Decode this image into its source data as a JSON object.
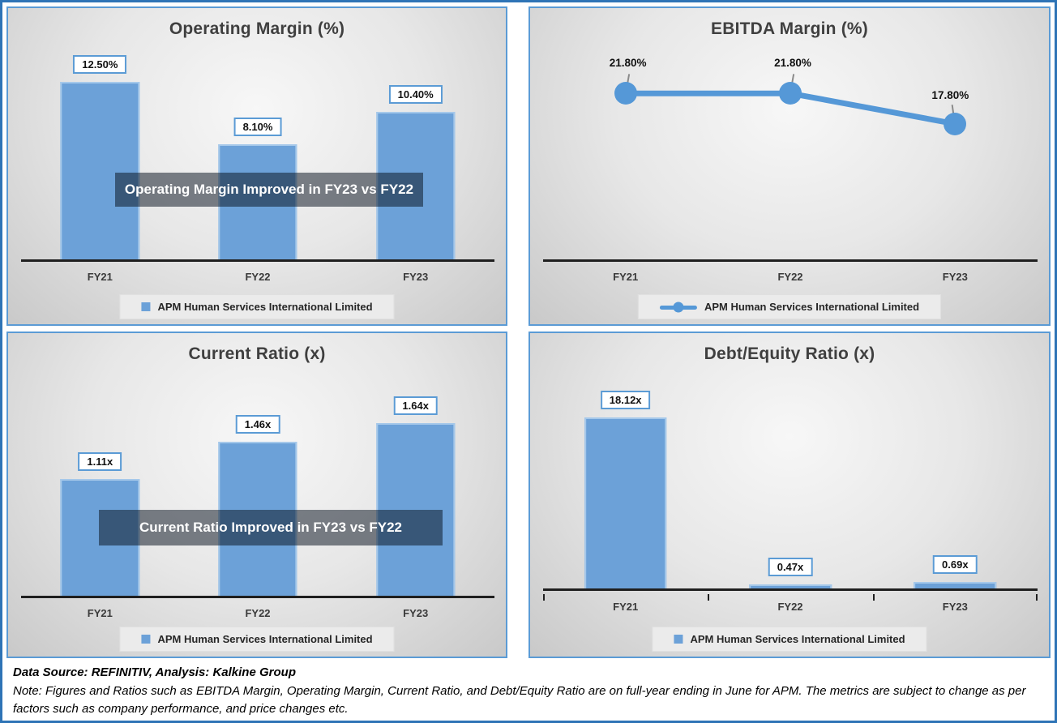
{
  "colors": {
    "frame_border": "#2E74B6",
    "panel_border": "#5B9BD5",
    "bar_fill": "#6CA1D8",
    "bar_border": "#A5C8EA",
    "line": "#5598D7",
    "marker": "#5598D7",
    "axis": "#1F1F1F",
    "banner_bg": "rgba(10,20,33,0.52)",
    "banner_text": "#FFFFFF",
    "label_box_border": "#5B9BD5",
    "legend_bg": "#EBEBEB",
    "title_text": "#3F3F3F"
  },
  "chart_data": [
    {
      "type": "bar",
      "title": "Operating Margin (%)",
      "categories": [
        "FY21",
        "FY22",
        "FY23"
      ],
      "values": [
        12.5,
        8.1,
        10.4
      ],
      "data_labels": [
        "12.50%",
        "8.10%",
        "10.40%"
      ],
      "ylim": [
        0,
        16
      ],
      "grid": false,
      "legend_position": "bottom",
      "annotation": "Operating Margin Improved in FY23 vs FY22",
      "legend": "APM Human Services International Limited",
      "xlabel": "",
      "ylabel": ""
    },
    {
      "type": "line",
      "title": "EBITDA Margin (%)",
      "categories": [
        "FY21",
        "FY22",
        "FY23"
      ],
      "values": [
        21.8,
        21.8,
        17.8
      ],
      "data_labels": [
        "21.80%",
        "21.80%",
        "17.80%"
      ],
      "ylim": [
        0,
        28
      ],
      "grid": false,
      "legend_position": "bottom",
      "legend": "APM Human Services International Limited",
      "xlabel": "",
      "ylabel": ""
    },
    {
      "type": "bar",
      "title": "Current Ratio (x)",
      "categories": [
        "FY21",
        "FY22",
        "FY23"
      ],
      "values": [
        1.11,
        1.46,
        1.64
      ],
      "data_labels": [
        "1.11x",
        "1.46x",
        "1.64x"
      ],
      "ylim": [
        0,
        2
      ],
      "grid": false,
      "legend_position": "bottom",
      "annotation": "Current Ratio Improved in FY23 vs FY22",
      "legend": "APM Human Services International Limited",
      "xlabel": "",
      "ylabel": ""
    },
    {
      "type": "bar",
      "title": "Debt/Equity Ratio (x)",
      "categories": [
        "FY21",
        "FY22",
        "FY23"
      ],
      "values": [
        18.12,
        0.47,
        0.69
      ],
      "data_labels": [
        "18.12x",
        "0.47x",
        "0.69x"
      ],
      "ylim": [
        0,
        22
      ],
      "grid": false,
      "legend_position": "bottom",
      "axis_ticks": true,
      "legend": "APM Human Services International Limited",
      "xlabel": "",
      "ylabel": ""
    }
  ],
  "footer": {
    "source": "Data Source: REFINITIV, Analysis: Kalkine Group",
    "note": "Note: Figures and Ratios such as EBITDA Margin, Operating Margin, Current Ratio, and Debt/Equity Ratio are on full-year ending in June for APM. The metrics are subject to change as per factors such as company performance, and price changes etc."
  }
}
